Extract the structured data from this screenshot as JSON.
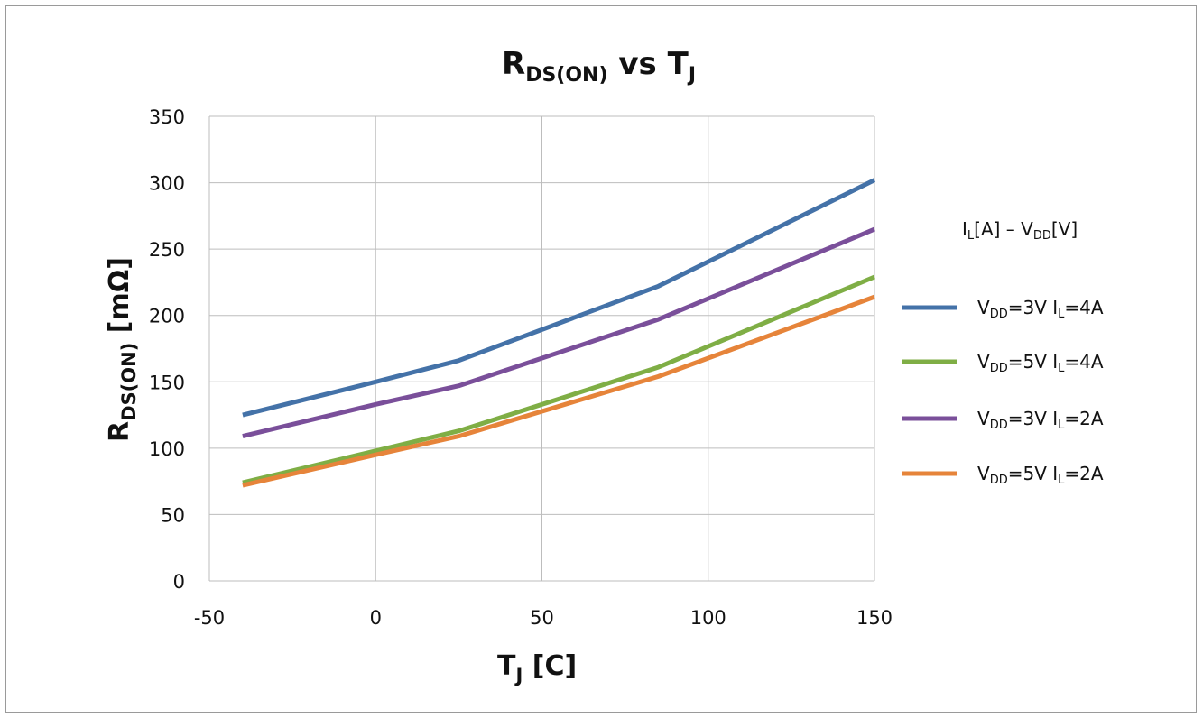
{
  "chart_data": {
    "type": "line",
    "title": {
      "main": "R",
      "sub": "DS(ON)",
      "mid": " vs T",
      "sub2": "J"
    },
    "xlabel": {
      "main": "T",
      "sub": "J",
      "rest": " [C]"
    },
    "ylabel": {
      "main": "R",
      "sub": "DS(ON)",
      "rest": " [mΩ]"
    },
    "xlim": [
      -50,
      150
    ],
    "ylim": [
      0,
      350
    ],
    "xticks": [
      "-50",
      "0",
      "50",
      "100",
      "150"
    ],
    "yticks": [
      "0",
      "50",
      "100",
      "150",
      "200",
      "250",
      "300",
      "350"
    ],
    "grid": true,
    "legend_position": "right",
    "legend_title": {
      "p1": "I",
      "s1": "L",
      "p2": "[A] – V",
      "s2": "DD",
      "p3": "[V]"
    },
    "x": [
      -40,
      0,
      25,
      85,
      150
    ],
    "series": [
      {
        "key": "s1",
        "label": {
          "p1": "V",
          "s1": "DD",
          "p2": "=3V  I",
          "s2": "L",
          "p3": "=4A"
        },
        "color": "#4472a8",
        "values": [
          125,
          150,
          166,
          222,
          302
        ]
      },
      {
        "key": "s2",
        "label": {
          "p1": "V",
          "s1": "DD",
          "p2": "=5V  I",
          "s2": "L",
          "p3": "=4A"
        },
        "color": "#7fae45",
        "values": [
          74,
          98,
          113,
          161,
          229
        ]
      },
      {
        "key": "s3",
        "label": {
          "p1": "V",
          "s1": "DD",
          "p2": "=3V  I",
          "s2": "L",
          "p3": "=2A"
        },
        "color": "#7a4f9a",
        "values": [
          109,
          133,
          147,
          197,
          265
        ]
      },
      {
        "key": "s4",
        "label": {
          "p1": "V",
          "s1": "DD",
          "p2": "=5V  I",
          "s2": "L",
          "p3": "=2A"
        },
        "color": "#e6843a",
        "values": [
          72,
          95,
          109,
          154,
          214
        ]
      }
    ]
  }
}
